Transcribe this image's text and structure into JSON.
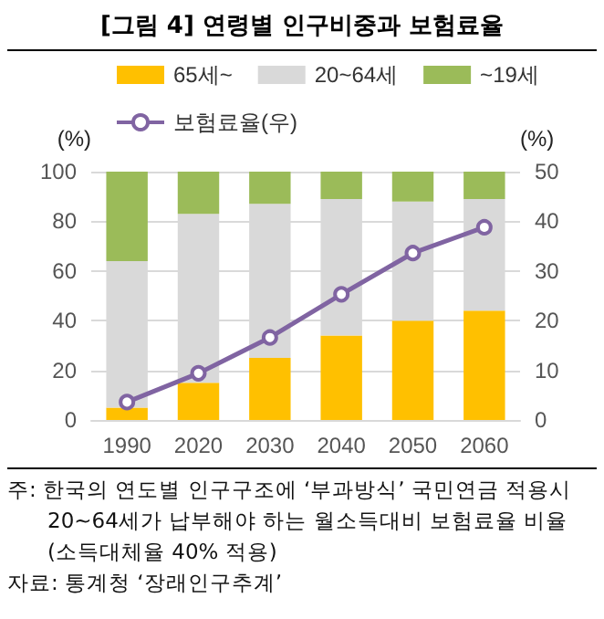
{
  "chart_data": {
    "type": "bar",
    "title": "[그림 4] 연령별 인구비중과 보험료율",
    "ylabel": "(%)",
    "y2label": "(%)",
    "categories": [
      "1990",
      "2020",
      "2030",
      "2040",
      "2050",
      "2060"
    ],
    "stacked": true,
    "series": [
      {
        "name": "65세~",
        "color": "#ffc000",
        "values": [
          5,
          15,
          25,
          34,
          40,
          44
        ]
      },
      {
        "name": "20~64세",
        "color": "#d9d9d9",
        "values": [
          59,
          68,
          62,
          55,
          48,
          45
        ]
      },
      {
        "name": "~19세",
        "color": "#9bbb59",
        "values": [
          36,
          17,
          13,
          11,
          12,
          11
        ]
      },
      {
        "name": "보험료율(우)",
        "type": "line",
        "axis": "y2",
        "color": "#8064a2",
        "marker": "circle",
        "values": [
          3.6,
          9.4,
          16.6,
          25.3,
          33.6,
          38.8
        ]
      }
    ],
    "ylim": [
      0,
      100
    ],
    "yticks": [
      0,
      20,
      40,
      60,
      80,
      100
    ],
    "y2lim": [
      0,
      50
    ],
    "y2ticks": [
      0,
      10,
      20,
      30,
      40,
      50
    ],
    "grid": "y",
    "legend": "top",
    "annotations": [
      "주: 한국의 연도별 인구구조에 ‘부과방식’ 국민연금 적용시 20~64세가 납부해야 하는 월소득대비 보험료율 비율 (소득대체율 40% 적용)",
      "자료: 통계청 ‘장래인구추계’"
    ]
  }
}
